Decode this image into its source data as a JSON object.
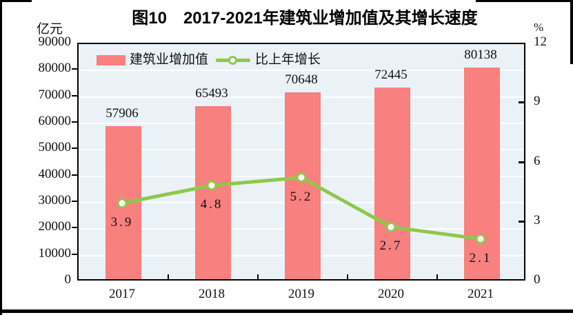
{
  "title": "图10　2017-2021年建筑业增加值及其增长速度",
  "chart_data": {
    "type": "combo",
    "title": "图10　2017-2021年建筑业增加值及其增长速度",
    "categories": [
      "2017",
      "2018",
      "2019",
      "2020",
      "2021"
    ],
    "series": [
      {
        "name": "建筑业增加值",
        "chart_type": "bar",
        "y_axis": "left",
        "values": [
          57906,
          65493,
          70648,
          72445,
          80138
        ],
        "color": "#F8807E"
      },
      {
        "name": "比上年增长",
        "chart_type": "line",
        "y_axis": "right",
        "values": [
          3.9,
          4.8,
          5.2,
          2.7,
          2.1
        ],
        "color": "#8EC84A",
        "marker": "circle-white-fill"
      }
    ],
    "left_axis": {
      "unit": "亿元",
      "min": 0,
      "max": 90000,
      "step": 10000
    },
    "right_axis": {
      "unit": "%",
      "min": 0,
      "max": 12,
      "step": 3
    },
    "grid": "horizontal-white-lines",
    "legend_position": "top-left-inside",
    "plot_bg": "#EAF2F7"
  }
}
